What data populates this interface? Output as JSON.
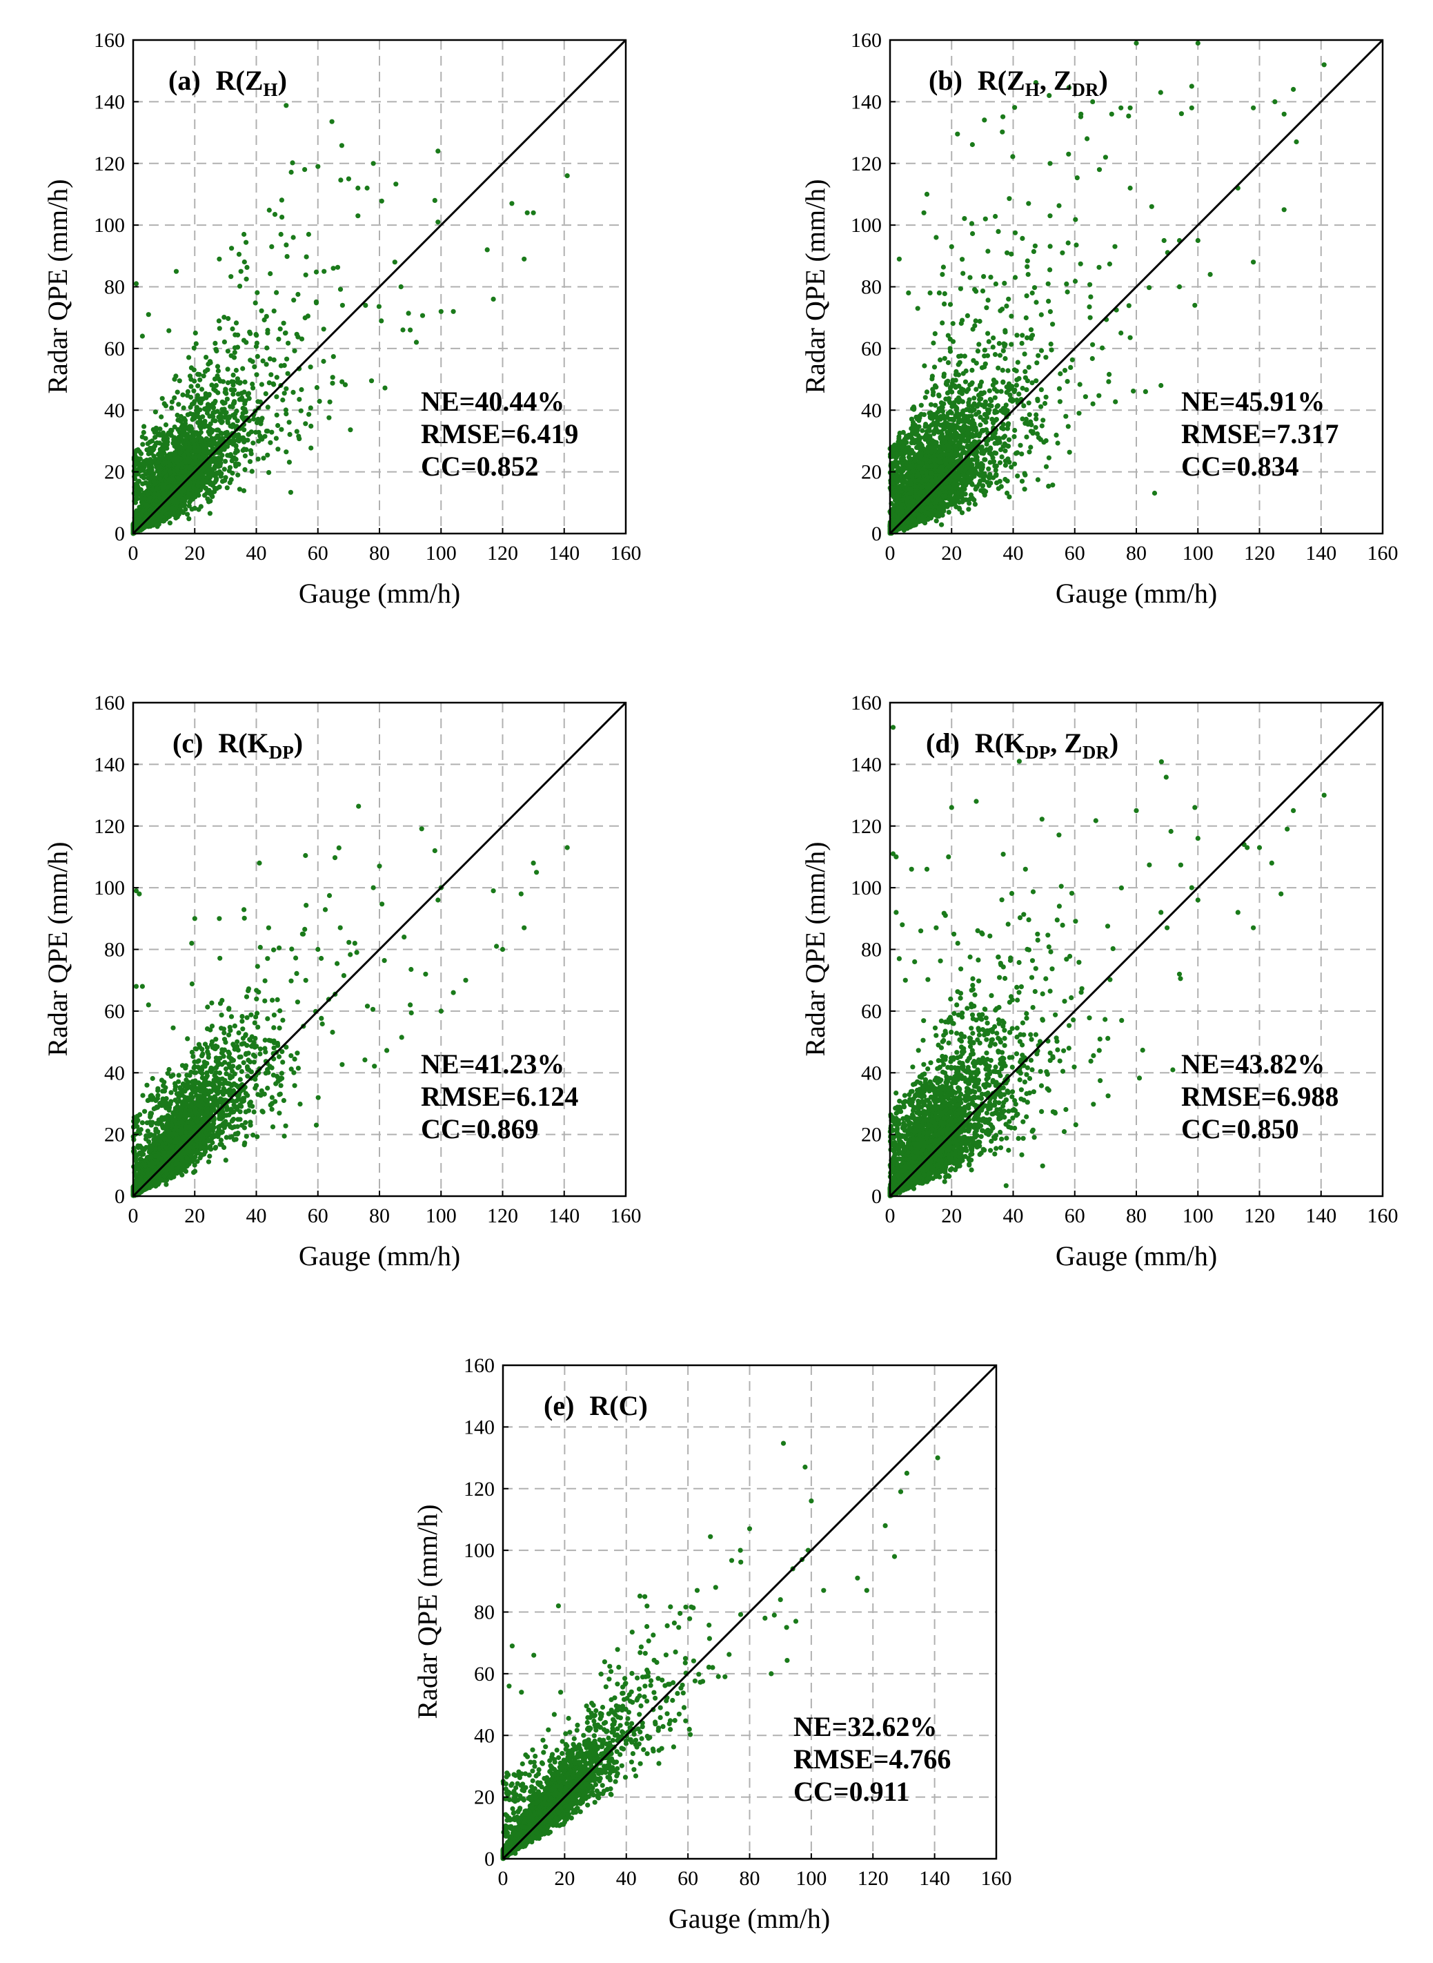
{
  "colors": {
    "points": "#1a7a1a",
    "diagonal": "#000000",
    "grid": "#b0b0b0"
  },
  "chart_data": [
    {
      "id": "a",
      "type": "scatter",
      "title": {
        "tag": "(a)",
        "prefix": "R(",
        "parts": [
          [
            "Z",
            "H"
          ]
        ],
        "suffix": ")"
      },
      "xlabel": "Gauge (mm/h)",
      "ylabel": "Radar QPE (mm/h)",
      "xlim": [
        0,
        160
      ],
      "ylim": [
        0,
        160
      ],
      "xticks": [
        "0",
        "20",
        "40",
        "60",
        "80",
        "100",
        "120",
        "140",
        "160"
      ],
      "yticks": [
        "0",
        "20",
        "40",
        "60",
        "80",
        "100",
        "120",
        "140",
        "160"
      ],
      "reference_line": "1:1",
      "stats": [
        "NE=40.44%",
        "RMSE=6.419",
        "CC=0.852"
      ],
      "cloud": {
        "n": 5200,
        "seed": 11,
        "slope": 1.0,
        "noise": 0.42,
        "xscale": 10,
        "extra": 0.06
      },
      "outliers": [
        [
          60,
          119
        ],
        [
          70,
          115
        ],
        [
          73,
          112
        ],
        [
          78,
          120
        ],
        [
          99,
          124
        ],
        [
          98,
          108
        ],
        [
          99,
          101
        ],
        [
          115,
          92
        ],
        [
          123,
          107
        ],
        [
          117,
          76
        ],
        [
          127,
          89
        ],
        [
          128,
          104
        ],
        [
          130,
          104
        ],
        [
          141,
          116
        ],
        [
          100,
          72
        ],
        [
          104,
          72
        ],
        [
          90,
          66
        ],
        [
          92,
          62
        ],
        [
          85,
          88
        ],
        [
          87,
          80
        ],
        [
          76,
          112
        ],
        [
          73,
          103
        ],
        [
          65,
          86
        ],
        [
          68,
          74
        ],
        [
          57,
          97
        ],
        [
          62,
          85
        ],
        [
          48,
          97
        ],
        [
          52,
          96
        ],
        [
          35,
          85
        ],
        [
          45,
          93
        ],
        [
          14,
          85
        ],
        [
          5,
          71
        ],
        [
          3,
          64
        ],
        [
          1,
          81
        ],
        [
          28,
          89
        ],
        [
          36,
          97
        ]
      ]
    },
    {
      "id": "b",
      "type": "scatter",
      "title": {
        "tag": "(b)",
        "prefix": "R(",
        "parts": [
          [
            "Z",
            "H"
          ],
          [
            "Z",
            "DR"
          ]
        ],
        "suffix": ")"
      },
      "xlabel": "Gauge (mm/h)",
      "ylabel": "Radar QPE (mm/h)",
      "xlim": [
        0,
        160
      ],
      "ylim": [
        0,
        160
      ],
      "xticks": [
        "0",
        "20",
        "40",
        "60",
        "80",
        "100",
        "120",
        "140",
        "160"
      ],
      "yticks": [
        "0",
        "20",
        "40",
        "60",
        "80",
        "100",
        "120",
        "140",
        "160"
      ],
      "reference_line": "1:1",
      "stats": [
        "NE=45.91%",
        "RMSE=7.317",
        "CC=0.834"
      ],
      "cloud": {
        "n": 5200,
        "seed": 23,
        "slope": 1.0,
        "noise": 0.52,
        "xscale": 10,
        "extra": 0.09
      },
      "outliers": [
        [
          80,
          159
        ],
        [
          100,
          159
        ],
        [
          98,
          145
        ],
        [
          98,
          138
        ],
        [
          118,
          138
        ],
        [
          125,
          140
        ],
        [
          128,
          136
        ],
        [
          131,
          144
        ],
        [
          141,
          152
        ],
        [
          52,
          120
        ],
        [
          58,
          123
        ],
        [
          62,
          136
        ],
        [
          64,
          128
        ],
        [
          72,
          136
        ],
        [
          75,
          138
        ],
        [
          78,
          138
        ],
        [
          70,
          122
        ],
        [
          68,
          118
        ],
        [
          78,
          112
        ],
        [
          85,
          106
        ],
        [
          89,
          95
        ],
        [
          94,
          95
        ],
        [
          100,
          95
        ],
        [
          113,
          112
        ],
        [
          118,
          88
        ],
        [
          128,
          105
        ],
        [
          132,
          127
        ],
        [
          104,
          84
        ],
        [
          99,
          74
        ],
        [
          94,
          80
        ],
        [
          11,
          104
        ],
        [
          12,
          110
        ],
        [
          15,
          96
        ],
        [
          17,
          84
        ],
        [
          16,
          78
        ],
        [
          20,
          93
        ],
        [
          26,
          83
        ],
        [
          31,
          102
        ],
        [
          38,
          91
        ],
        [
          45,
          107
        ],
        [
          52,
          103
        ],
        [
          56,
          91
        ],
        [
          65,
          70
        ],
        [
          75,
          65
        ],
        [
          83,
          46
        ],
        [
          88,
          48
        ],
        [
          3,
          89
        ],
        [
          6,
          78
        ],
        [
          9,
          73
        ]
      ]
    },
    {
      "id": "c",
      "type": "scatter",
      "title": {
        "tag": "(c)",
        "prefix": "R(",
        "parts": [
          [
            "K",
            "DP"
          ]
        ],
        "suffix": ")"
      },
      "xlabel": "Gauge (mm/h)",
      "ylabel": "Radar QPE (mm/h)",
      "xlim": [
        0,
        160
      ],
      "ylim": [
        0,
        160
      ],
      "xticks": [
        "0",
        "20",
        "40",
        "60",
        "80",
        "100",
        "120",
        "140",
        "160"
      ],
      "yticks": [
        "0",
        "20",
        "40",
        "60",
        "80",
        "100",
        "120",
        "140",
        "160"
      ],
      "reference_line": "1:1",
      "stats": [
        "NE=41.23%",
        "RMSE=6.124",
        "CC=0.869"
      ],
      "cloud": {
        "n": 5200,
        "seed": 37,
        "slope": 1.0,
        "noise": 0.34,
        "xscale": 10,
        "extra": 0.05
      },
      "outliers": [
        [
          1,
          99
        ],
        [
          2,
          98
        ],
        [
          41,
          108
        ],
        [
          80,
          107
        ],
        [
          98,
          112
        ],
        [
          100,
          100
        ],
        [
          99,
          96
        ],
        [
          118,
          81
        ],
        [
          120,
          80
        ],
        [
          117,
          99
        ],
        [
          126,
          98
        ],
        [
          130,
          108
        ],
        [
          131,
          105
        ],
        [
          127,
          87
        ],
        [
          141,
          113
        ],
        [
          100,
          60
        ],
        [
          104,
          66
        ],
        [
          108,
          70
        ],
        [
          20,
          90
        ],
        [
          28,
          90
        ],
        [
          19,
          82
        ],
        [
          44,
          87
        ],
        [
          55,
          85
        ],
        [
          60,
          80
        ],
        [
          72,
          82
        ],
        [
          78,
          100
        ],
        [
          88,
          84
        ],
        [
          1,
          68
        ],
        [
          3,
          68
        ],
        [
          5,
          62
        ],
        [
          90,
          62
        ],
        [
          95,
          72
        ]
      ]
    },
    {
      "id": "d",
      "type": "scatter",
      "title": {
        "tag": "(d)",
        "prefix": "R(",
        "parts": [
          [
            "K",
            "DP"
          ],
          [
            "Z",
            "DR"
          ]
        ],
        "suffix": ")"
      },
      "xlabel": "Gauge (mm/h)",
      "ylabel": "Radar QPE (mm/h)",
      "xlim": [
        0,
        160
      ],
      "ylim": [
        0,
        160
      ],
      "xticks": [
        "0",
        "20",
        "40",
        "60",
        "80",
        "100",
        "120",
        "140",
        "160"
      ],
      "yticks": [
        "0",
        "20",
        "40",
        "60",
        "80",
        "100",
        "120",
        "140",
        "160"
      ],
      "reference_line": "1:1",
      "stats": [
        "NE=43.82%",
        "RMSE=6.988",
        "CC=0.850"
      ],
      "cloud": {
        "n": 5200,
        "seed": 53,
        "slope": 1.0,
        "noise": 0.46,
        "xscale": 10,
        "extra": 0.08
      },
      "outliers": [
        [
          1,
          152
        ],
        [
          42,
          141
        ],
        [
          28,
          128
        ],
        [
          20,
          126
        ],
        [
          99,
          126
        ],
        [
          100,
          116
        ],
        [
          80,
          125
        ],
        [
          1,
          111
        ],
        [
          2,
          110
        ],
        [
          7,
          106
        ],
        [
          12,
          106
        ],
        [
          19,
          110
        ],
        [
          44,
          106
        ],
        [
          98,
          100
        ],
        [
          100,
          96
        ],
        [
          115,
          114
        ],
        [
          116,
          113
        ],
        [
          120,
          113
        ],
        [
          124,
          108
        ],
        [
          127,
          98
        ],
        [
          129,
          119
        ],
        [
          131,
          125
        ],
        [
          141,
          130
        ],
        [
          118,
          87
        ],
        [
          113,
          92
        ],
        [
          94,
          72
        ],
        [
          88,
          92
        ],
        [
          90,
          87
        ],
        [
          2,
          92
        ],
        [
          4,
          88
        ],
        [
          10,
          86
        ],
        [
          15,
          87
        ],
        [
          18,
          91
        ],
        [
          22,
          82
        ],
        [
          30,
          85
        ],
        [
          36,
          75
        ],
        [
          48,
          83
        ],
        [
          55,
          94
        ],
        [
          3,
          77
        ],
        [
          5,
          70
        ],
        [
          8,
          76
        ]
      ]
    },
    {
      "id": "e",
      "type": "scatter",
      "title": {
        "tag": "(e)",
        "prefix": "R(",
        "parts": [],
        "suffix": "C)"
      },
      "xlabel": "Gauge (mm/h)",
      "ylabel": "Radar QPE (mm/h)",
      "xlim": [
        0,
        160
      ],
      "ylim": [
        0,
        160
      ],
      "xticks": [
        "0",
        "20",
        "40",
        "60",
        "80",
        "100",
        "120",
        "140",
        "160"
      ],
      "yticks": [
        "0",
        "20",
        "40",
        "60",
        "80",
        "100",
        "120",
        "140",
        "160"
      ],
      "reference_line": "1:1",
      "stats": [
        "NE=32.62%",
        "RMSE=4.766",
        "CC=0.911"
      ],
      "cloud": {
        "n": 5200,
        "seed": 71,
        "slope": 1.0,
        "noise": 0.26,
        "xscale": 10,
        "extra": 0.03
      },
      "outliers": [
        [
          98,
          127
        ],
        [
          100,
          116
        ],
        [
          99,
          100
        ],
        [
          97,
          97
        ],
        [
          129,
          119
        ],
        [
          131,
          125
        ],
        [
          141,
          130
        ],
        [
          124,
          108
        ],
        [
          127,
          98
        ],
        [
          115,
          91
        ],
        [
          118,
          87
        ],
        [
          104,
          87
        ],
        [
          80,
          107
        ],
        [
          77,
          100
        ],
        [
          94,
          94
        ],
        [
          90,
          84
        ],
        [
          88,
          79
        ],
        [
          85,
          78
        ],
        [
          18,
          82
        ],
        [
          46,
          85
        ],
        [
          57,
          75
        ],
        [
          69,
          88
        ],
        [
          63,
          87
        ],
        [
          3,
          69
        ],
        [
          6,
          54
        ],
        [
          10,
          66
        ],
        [
          2,
          56
        ],
        [
          87,
          60
        ],
        [
          92,
          75
        ],
        [
          95,
          77
        ],
        [
          68,
          62
        ],
        [
          72,
          59
        ]
      ]
    }
  ]
}
